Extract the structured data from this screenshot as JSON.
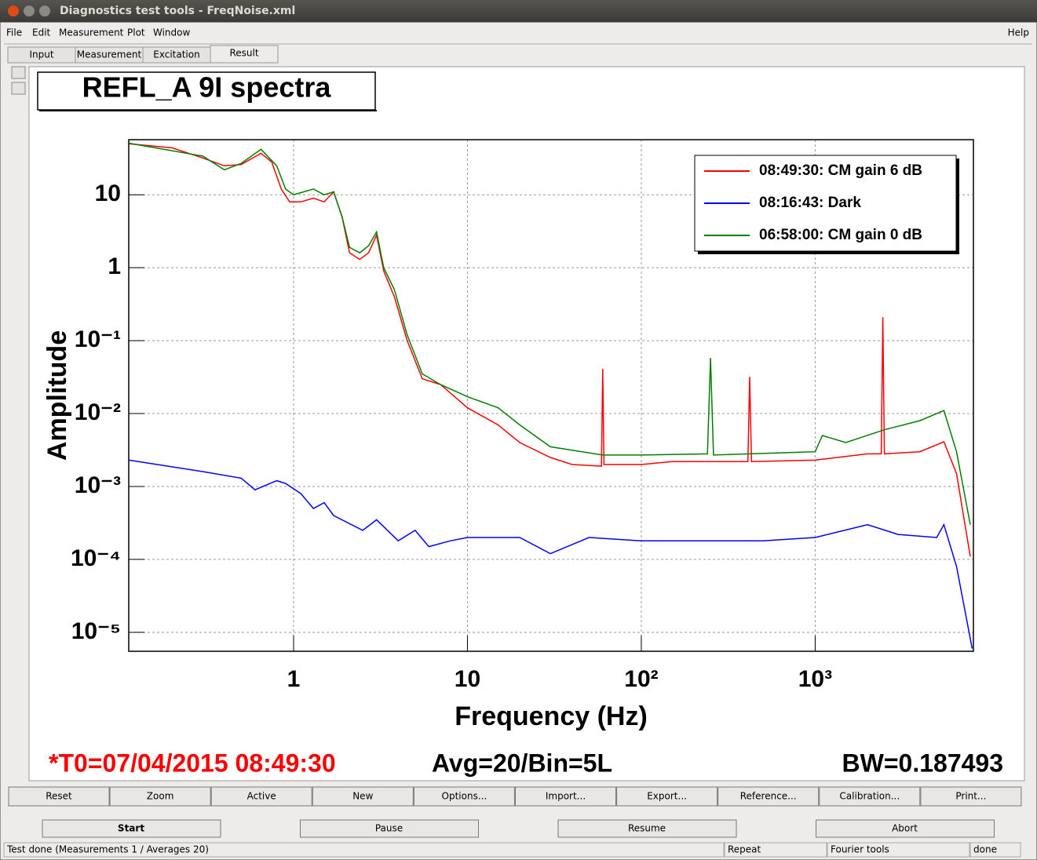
{
  "window": {
    "title": "Diagnostics test tools - FreqNoise.xml"
  },
  "menu": [
    "File",
    "Edit",
    "Measurement",
    "Plot",
    "Window"
  ],
  "help": "Help",
  "tabs": [
    "Input",
    "Measurement",
    "Excitation",
    "Result"
  ],
  "chart_data": {
    "type": "line",
    "title": "REFL_A 9I spectra",
    "x_label": "Frequency (Hz)",
    "y_label": "Amplitude",
    "log_x": true,
    "log_y": true,
    "grid": true,
    "legend_position": "upper right",
    "xlim": [
      0.1127,
      8130
    ],
    "ylim": [
      5.5e-06,
      57
    ],
    "xticks": [
      1,
      10,
      {
        "value": 100,
        "label": "10²"
      },
      {
        "value": 1000,
        "label": "10³"
      }
    ],
    "yticks": [
      10,
      1,
      {
        "value": 0.1,
        "label": "10⁻¹"
      },
      {
        "value": 0.01,
        "label": "10⁻²"
      },
      {
        "value": 0.001,
        "label": "10⁻³"
      },
      {
        "value": 0.0001,
        "label": "10⁻⁴"
      },
      {
        "value": 1e-05,
        "label": "10⁻⁵"
      }
    ],
    "series": [
      {
        "name": "08:49:30: CM gain 6 dB",
        "color": "#ff0000",
        "x": [
          0.113,
          0.2,
          0.3,
          0.4,
          0.5,
          0.65,
          0.75,
          0.85,
          0.95,
          1.1,
          1.3,
          1.5,
          1.7,
          1.9,
          2.1,
          2.4,
          2.7,
          3.0,
          3.3,
          3.8,
          4.5,
          5.5,
          7,
          10,
          15,
          20,
          30,
          40,
          59,
          60,
          61,
          100,
          150,
          300,
          410,
          420,
          430,
          1000,
          2000,
          2400,
          2450,
          2500,
          4000,
          5500,
          6500,
          7800
        ],
        "values": [
          50,
          44,
          32,
          25,
          26,
          37,
          28,
          12,
          8,
          8,
          9,
          8,
          11,
          5,
          1.6,
          1.3,
          1.6,
          2.8,
          0.9,
          0.4,
          0.1,
          0.03,
          0.025,
          0.012,
          0.007,
          0.004,
          0.0025,
          0.002,
          0.0019,
          0.041,
          0.002,
          0.002,
          0.0022,
          0.0022,
          0.0022,
          0.032,
          0.0022,
          0.0023,
          0.0028,
          0.0028,
          0.21,
          0.0028,
          0.003,
          0.0041,
          0.0015,
          0.00011
        ]
      },
      {
        "name": "08:16:43: Dark",
        "color": "#0000ff",
        "x": [
          0.113,
          0.3,
          0.5,
          0.6,
          0.8,
          0.9,
          1.1,
          1.3,
          1.5,
          1.7,
          2.5,
          3,
          4,
          5,
          6,
          8,
          10,
          20,
          30,
          50,
          100,
          500,
          1000,
          2000,
          3000,
          5000,
          5500,
          6500,
          8000
        ],
        "values": [
          0.0023,
          0.0016,
          0.0013,
          0.0009,
          0.0012,
          0.0011,
          0.0008,
          0.0005,
          0.0006,
          0.0004,
          0.00025,
          0.00035,
          0.00018,
          0.00025,
          0.00015,
          0.00018,
          0.0002,
          0.0002,
          0.00012,
          0.0002,
          0.00018,
          0.00018,
          0.0002,
          0.0003,
          0.00022,
          0.0002,
          0.0003,
          8e-05,
          6e-06
        ]
      },
      {
        "name": "06:58:00: CM gain 0 dB",
        "color": "#007f00",
        "x": [
          0.113,
          0.3,
          0.4,
          0.5,
          0.65,
          0.8,
          0.9,
          1.0,
          1.3,
          1.5,
          1.7,
          1.9,
          2.1,
          2.4,
          2.7,
          3.0,
          3.3,
          3.8,
          4.5,
          5.5,
          7,
          10,
          15,
          20,
          30,
          60,
          100,
          240,
          250,
          260,
          1000,
          1100,
          1500,
          2500,
          4000,
          5500,
          6500,
          7800
        ],
        "values": [
          51,
          34,
          22,
          27,
          42,
          25,
          12,
          10,
          12,
          10,
          11,
          5,
          1.9,
          1.6,
          2,
          3.1,
          1.0,
          0.5,
          0.12,
          0.035,
          0.025,
          0.017,
          0.012,
          0.007,
          0.0035,
          0.0027,
          0.0027,
          0.0028,
          0.058,
          0.0027,
          0.003,
          0.005,
          0.004,
          0.006,
          0.008,
          0.011,
          0.003,
          0.0003
        ]
      }
    ]
  },
  "info": {
    "t0": "*T0=07/04/2015 08:49:30",
    "averages": "Avg=20/Bin=5L",
    "bandwidth": "BW=0.187493"
  },
  "buttons": [
    "Reset",
    "Zoom",
    "Active",
    "New",
    "Options...",
    "Import...",
    "Export...",
    "Reference...",
    "Calibration...",
    "Print..."
  ],
  "controls": [
    "Start",
    "Pause",
    "Resume",
    "Abort"
  ],
  "status": [
    "Test done (Measurements 1 / Averages 20)",
    "Repeat",
    "Fourier tools",
    "done"
  ]
}
